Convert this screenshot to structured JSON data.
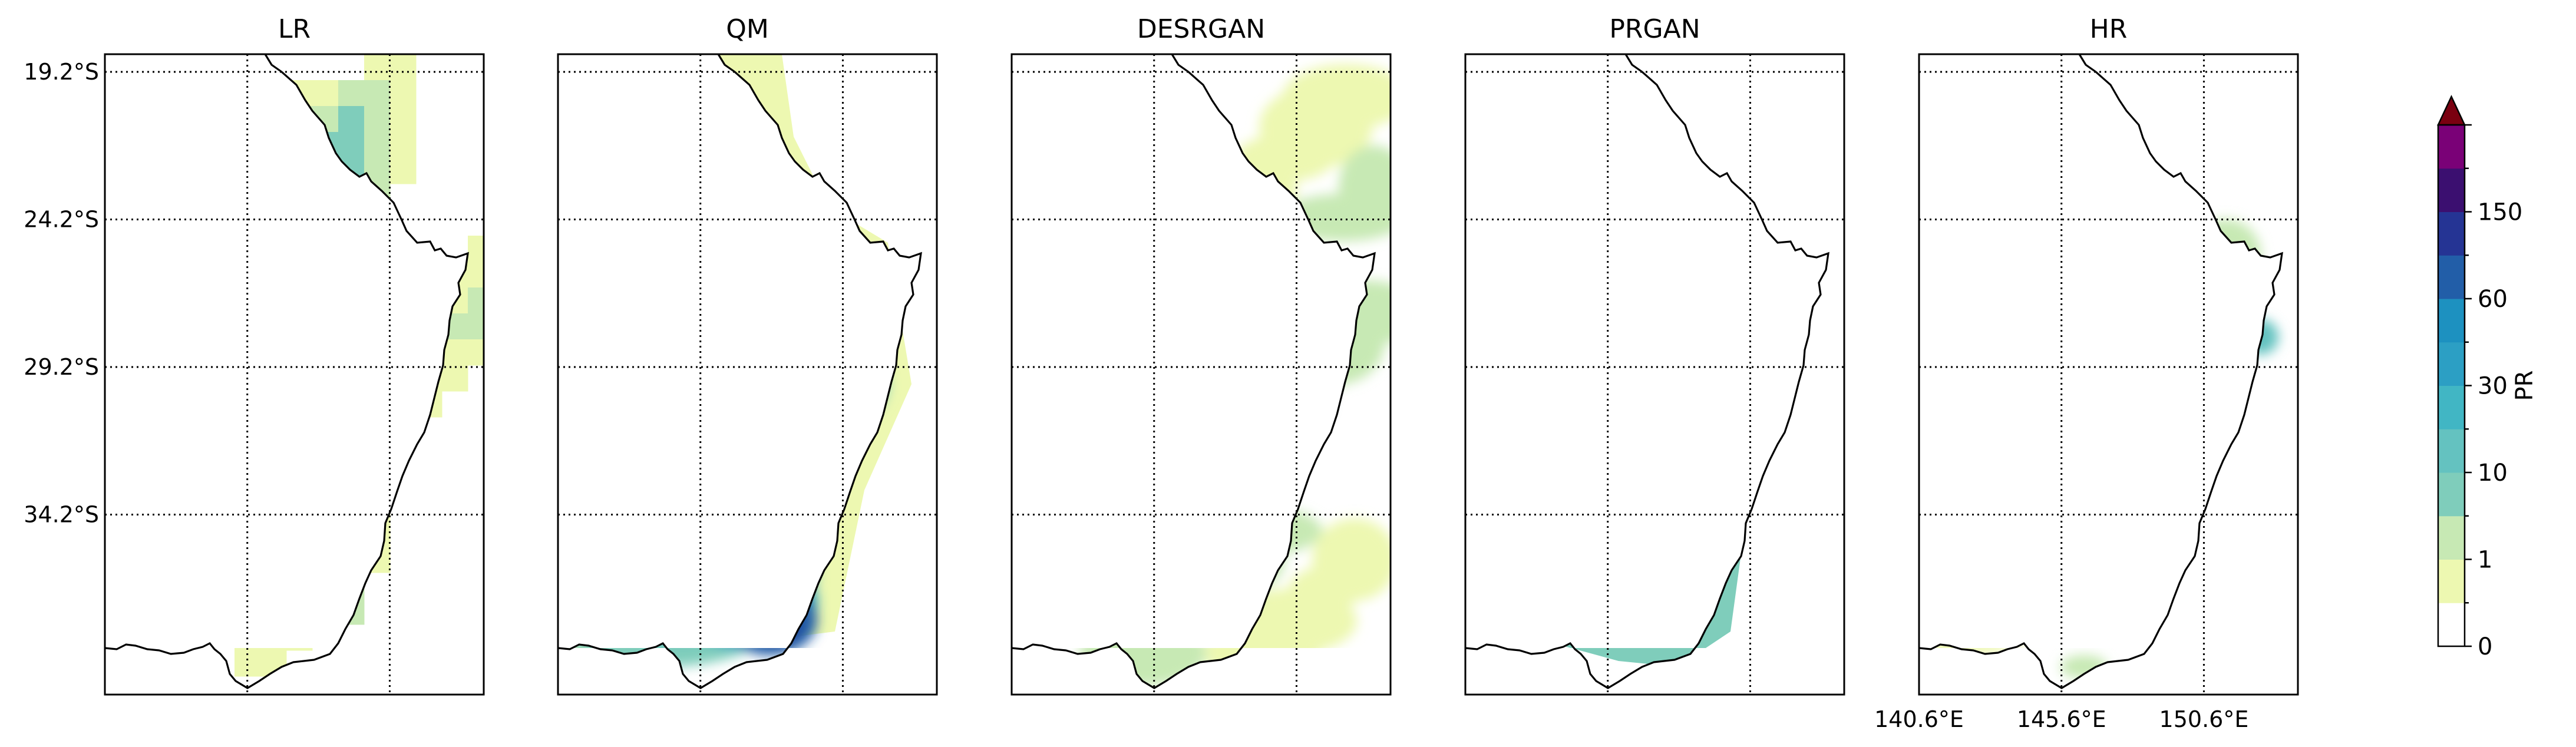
{
  "figure": {
    "panels": [
      {
        "id": "lr",
        "title": "LR",
        "style": "blocky"
      },
      {
        "id": "qm",
        "title": "QM",
        "style": "smooth"
      },
      {
        "id": "desrgan",
        "title": "DESRGAN",
        "style": "patchy"
      },
      {
        "id": "prgan",
        "title": "PRGAN",
        "style": "flat"
      },
      {
        "id": "hr",
        "title": "HR",
        "style": "peaked"
      }
    ],
    "latitude_labels": [
      "19.2°S",
      "24.2°S",
      "29.2°S",
      "34.2°S"
    ],
    "longitude_labels": [
      "140.6°E",
      "145.6°E",
      "150.6°E"
    ],
    "latitude_values": [
      -19.2,
      -24.2,
      -29.2,
      -34.2
    ],
    "longitude_values": [
      140.6,
      145.6,
      150.6
    ],
    "map_extent": {
      "lon_min": 140.6,
      "lon_max": 153.9,
      "lat_min": -40.3,
      "lat_max": -18.6
    },
    "gridlines": "dotted",
    "colorbar": {
      "label": "PR",
      "tick_labels": [
        "0",
        "1",
        "10",
        "30",
        "60",
        "150"
      ],
      "levels": 12,
      "extend": "max",
      "extend_color": "#7a0010",
      "colors": [
        "#ffffff",
        "#edf8b1",
        "#c7e9b4",
        "#7fcdbb",
        "#64c2c0",
        "#41b6c4",
        "#2c9fc4",
        "#1d91c0",
        "#225ea8",
        "#253494",
        "#3b0f70",
        "#7a0177"
      ]
    }
  }
}
